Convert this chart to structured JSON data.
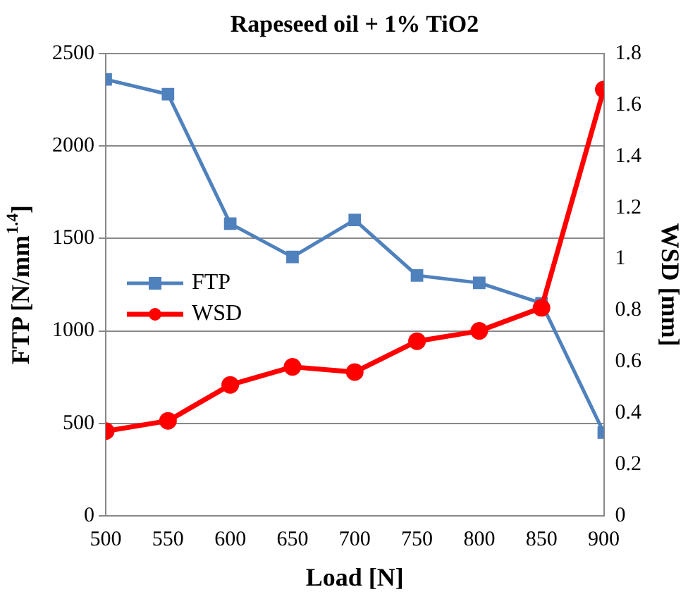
{
  "chart_data": {
    "type": "line",
    "title": "Rapeseed oil + 1% TiO2",
    "xlabel": "Load [N]",
    "ylabel": "FTP [N/mm$^{1.4}$]",
    "y2label": "WSD [mm]",
    "x": [
      500,
      550,
      600,
      650,
      700,
      750,
      800,
      850,
      900
    ],
    "series": [
      {
        "name": "FTP",
        "color": "#4f81bd",
        "marker": "square",
        "values": [
          2360,
          2280,
          1580,
          1400,
          1600,
          1300,
          1260,
          1150,
          450
        ]
      },
      {
        "name": "WSD",
        "color": "#ff0000",
        "marker": "circle",
        "axis": "y2",
        "values": [
          0.33,
          0.37,
          0.51,
          0.58,
          0.56,
          0.68,
          0.72,
          0.81,
          1.66
        ]
      }
    ],
    "xlim": [
      500,
      900
    ],
    "xticks": [
      500,
      550,
      600,
      650,
      700,
      750,
      800,
      850,
      900
    ],
    "ylim": [
      0,
      2500
    ],
    "yticks": [
      0,
      500,
      1000,
      1500,
      2000,
      2500
    ],
    "y2lim": [
      0,
      1.8
    ],
    "y2ticks": [
      0,
      0.2,
      0.4,
      0.6,
      0.8,
      1,
      1.2,
      1.4,
      1.6,
      1.8
    ],
    "grid": "y",
    "legend": "center left"
  }
}
